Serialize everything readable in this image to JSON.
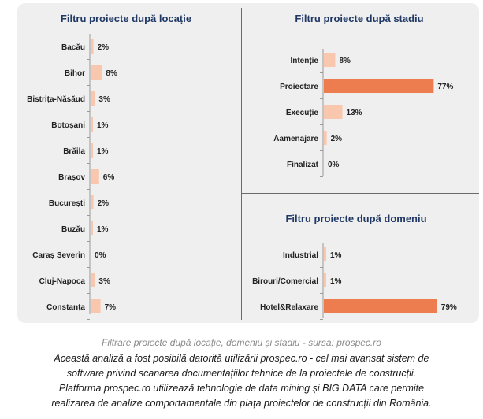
{
  "colors": {
    "accent": "#ed7d4e",
    "light": "#f9c7ae",
    "title": "#1f3864",
    "axis": "#9a9a9a"
  },
  "chart_data": [
    {
      "type": "bar",
      "orientation": "horizontal",
      "title": "Filtru proiecte după locație",
      "categories": [
        "Bacău",
        "Bihor",
        "Bistrița-Năsăud",
        "Botoșani",
        "Brăila",
        "Brașov",
        "București",
        "Buzău",
        "Caraș Severin",
        "Cluj-Napoca",
        "Constanța"
      ],
      "values": [
        2,
        8,
        3,
        1,
        1,
        6,
        2,
        1,
        0,
        3,
        7
      ],
      "labels": [
        "2%",
        "8%",
        "3%",
        "1%",
        "1%",
        "6%",
        "2%",
        "1%",
        "0%",
        "3%",
        "7%"
      ],
      "unit": "%",
      "highlight": []
    },
    {
      "type": "bar",
      "orientation": "horizontal",
      "title": "Filtru proiecte după stadiu",
      "categories": [
        "Intenție",
        "Proiectare",
        "Execuție",
        "Aamenajare",
        "Finalizat"
      ],
      "values": [
        8,
        77,
        13,
        2,
        0
      ],
      "labels": [
        "8%",
        "77%",
        "13%",
        "2%",
        "0%"
      ],
      "unit": "%",
      "highlight": [
        1
      ]
    },
    {
      "type": "bar",
      "orientation": "horizontal",
      "title": "Filtru proiecte după domeniu",
      "categories": [
        "Industrial",
        "Birouri/Comercial",
        "Hotel&Relaxare"
      ],
      "values": [
        1,
        1,
        79
      ],
      "labels": [
        "1%",
        "1%",
        "79%"
      ],
      "unit": "%",
      "highlight": [
        2
      ]
    }
  ],
  "caption": {
    "source": "Filtrare proiecte după locație, domeniu și stadiu - sursa: prospec.ro",
    "line1": "Această analiză a fost posibilă datorită utilizării prospec.ro - cel mai avansat sistem de",
    "line2": "software privind scanarea documentațiilor tehnice de la proiectele de construcții.",
    "line3": "Platforma prospec.ro utilizează tehnologie de data mining și BIG DATA care permite",
    "line4": "realizarea de analize comportamentale din piața proiectelor de construcții din România."
  }
}
